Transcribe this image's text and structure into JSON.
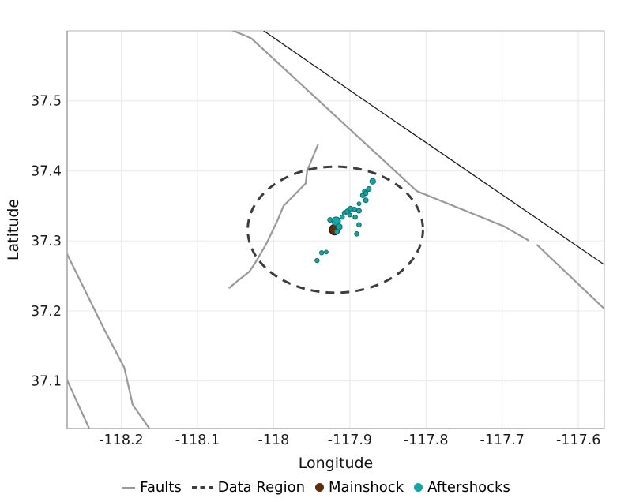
{
  "legend": {
    "items": [
      {
        "label": "Faults",
        "swatch": "line",
        "color": "#999999"
      },
      {
        "label": "Data Region",
        "swatch": "dashed-line",
        "color": "#3d3d3d"
      },
      {
        "label": "Mainshock",
        "swatch": "dot",
        "color": "#5C2E0E"
      },
      {
        "label": "Aftershocks",
        "swatch": "dot",
        "color": "#14A5A5"
      }
    ]
  },
  "chart_data": {
    "type": "scatter",
    "title": "",
    "xlabel": "Longitude",
    "ylabel": "Latitude",
    "xlim": [
      -118.271,
      -117.566
    ],
    "ylim": [
      37.032,
      37.6
    ],
    "x_ticks": [
      -118.2,
      -118.1,
      -118.0,
      -117.9,
      -117.8,
      -117.7,
      -117.6
    ],
    "x_tick_labels": [
      "-118.2",
      "-118.1",
      "-118",
      "-117.9",
      "-117.8",
      "-117.7",
      "-117.6"
    ],
    "y_ticks": [
      37.5,
      37.4,
      37.3,
      37.2,
      37.1
    ],
    "y_tick_labels": [
      "37.5",
      "37.4",
      "37.3",
      "37.2",
      "37.1"
    ],
    "grid": true,
    "legend_position": "bottom",
    "style": {
      "background": "#ffffff",
      "grid_color": "#ececec",
      "spine_color": "#b3b3b3",
      "left_spine_color": "#8c8c8c",
      "bottom_spine_color": "#9a9a9a",
      "tick_label_color": "#1a1a1a"
    },
    "series": [
      {
        "name": "Faults",
        "type": "line",
        "color": "#999999",
        "width": 2.2,
        "lines": [
          [
            [
              -118.053,
              37.6
            ],
            [
              -118.037,
              37.593
            ],
            [
              -118.029,
              37.589
            ],
            [
              -117.812,
              37.371
            ],
            [
              -117.698,
              37.321
            ],
            [
              -117.666,
              37.301
            ]
          ],
          [
            [
              -117.654,
              37.294
            ],
            [
              -117.566,
              37.203
            ]
          ],
          [
            [
              -117.942,
              37.437
            ],
            [
              -117.956,
              37.4
            ],
            [
              -117.958,
              37.382
            ],
            [
              -117.987,
              37.35
            ],
            [
              -117.995,
              37.329
            ],
            [
              -118.01,
              37.295
            ],
            [
              -118.024,
              37.269
            ],
            [
              -118.032,
              37.256
            ],
            [
              -118.046,
              37.244
            ],
            [
              -118.058,
              37.233
            ]
          ],
          [
            [
              -118.271,
              37.281
            ],
            [
              -118.222,
              37.173
            ],
            [
              -118.196,
              37.119
            ],
            [
              -118.185,
              37.066
            ],
            [
              -118.163,
              37.032
            ]
          ],
          [
            [
              -118.271,
              37.101
            ],
            [
              -118.242,
              37.032
            ]
          ]
        ]
      },
      {
        "name": "Boundary line",
        "type": "line",
        "color": "#1a1a1a",
        "width": 1.3,
        "lines": [
          [
            [
              -118.013,
              37.6
            ],
            [
              -117.88,
              37.5
            ],
            [
              -117.566,
              37.266
            ]
          ]
        ]
      },
      {
        "name": "Data Region",
        "type": "ellipse",
        "color": "#3d3d3d",
        "width": 3,
        "dash": [
          11,
          8
        ],
        "center": [
          -117.919,
          37.316
        ],
        "rx": 0.115,
        "ry": 0.09
      },
      {
        "name": "Mainshock",
        "type": "scatter",
        "fill": "#5C2E0E",
        "stroke": "#35190A",
        "stroke_width": 1.5,
        "points": [
          [
            -117.92,
            37.316,
            6.5
          ]
        ]
      },
      {
        "name": "Aftershocks",
        "type": "scatter",
        "fill": "#14A5A5",
        "stroke": "#0A6B6B",
        "stroke_width": 1,
        "points": [
          [
            -117.926,
            37.33,
            3.0
          ],
          [
            -117.918,
            37.328,
            5.5
          ],
          [
            -117.914,
            37.32,
            3.8
          ],
          [
            -117.917,
            37.313,
            3.0
          ],
          [
            -117.91,
            37.334,
            2.8
          ],
          [
            -117.907,
            37.34,
            2.8
          ],
          [
            -117.903,
            37.342,
            3.3
          ],
          [
            -117.9,
            37.337,
            2.6
          ],
          [
            -117.899,
            37.346,
            3.0
          ],
          [
            -117.894,
            37.345,
            2.8
          ],
          [
            -117.888,
            37.343,
            3.0
          ],
          [
            -117.893,
            37.334,
            2.8
          ],
          [
            -117.888,
            37.323,
            2.8
          ],
          [
            -117.891,
            37.31,
            2.8
          ],
          [
            -117.888,
            37.353,
            2.4
          ],
          [
            -117.879,
            37.358,
            3.0
          ],
          [
            -117.883,
            37.365,
            3.0
          ],
          [
            -117.881,
            37.371,
            2.4
          ],
          [
            -117.879,
            37.368,
            2.8
          ],
          [
            -117.875,
            37.374,
            3.0
          ],
          [
            -117.87,
            37.385,
            3.6
          ],
          [
            -117.937,
            37.283,
            2.7
          ],
          [
            -117.931,
            37.284,
            2.4
          ],
          [
            -117.943,
            37.272,
            2.7
          ]
        ]
      }
    ]
  }
}
